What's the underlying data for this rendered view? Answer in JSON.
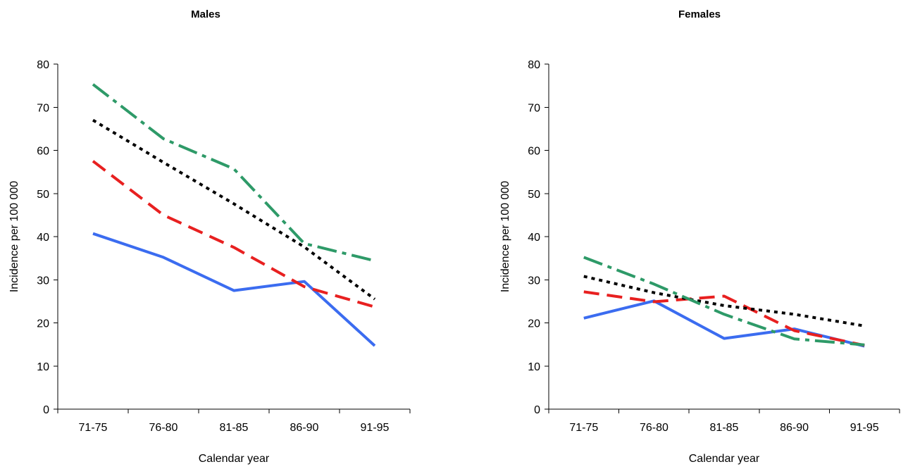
{
  "chart_data": [
    {
      "type": "line",
      "title": "Males",
      "xlabel": "Calendar year",
      "ylabel": "Incidence per 100 000",
      "categories": [
        "71-75",
        "76-80",
        "81-85",
        "86-90",
        "91-95"
      ],
      "ylim": [
        0,
        80
      ],
      "yticks": [
        0,
        10,
        20,
        30,
        40,
        50,
        60,
        70,
        80
      ],
      "grid": false,
      "series": [
        {
          "color": "#3b6cf0",
          "dash": "solid",
          "values": [
            40.7,
            35.2,
            27.5,
            29.6,
            14.7
          ]
        },
        {
          "color": "#e82020",
          "dash": "long-dash",
          "values": [
            57.5,
            45.0,
            37.5,
            28.4,
            23.7
          ]
        },
        {
          "color": "#000000",
          "dash": "dot",
          "values": [
            67.0,
            57.2,
            47.6,
            37.6,
            25.5
          ]
        },
        {
          "color": "#2e9a68",
          "dash": "dash-dot",
          "values": [
            75.3,
            62.7,
            55.7,
            38.4,
            34.4
          ]
        }
      ]
    },
    {
      "type": "line",
      "title": "Females",
      "xlabel": "Calendar year",
      "ylabel": "Incidence per 100 000",
      "categories": [
        "71-75",
        "76-80",
        "81-85",
        "86-90",
        "91-95"
      ],
      "ylim": [
        0,
        80
      ],
      "yticks": [
        0,
        10,
        20,
        30,
        40,
        50,
        60,
        70,
        80
      ],
      "grid": false,
      "series": [
        {
          "color": "#3b6cf0",
          "dash": "solid",
          "values": [
            21.1,
            25.1,
            16.4,
            18.6,
            14.6
          ]
        },
        {
          "color": "#e82020",
          "dash": "long-dash",
          "values": [
            27.2,
            24.9,
            26.2,
            18.2,
            14.8
          ]
        },
        {
          "color": "#000000",
          "dash": "dot",
          "values": [
            30.8,
            27.0,
            24.0,
            22.0,
            19.3
          ]
        },
        {
          "color": "#2e9a68",
          "dash": "dash-dot",
          "values": [
            35.2,
            29.0,
            22.0,
            16.3,
            14.9
          ]
        }
      ]
    }
  ]
}
